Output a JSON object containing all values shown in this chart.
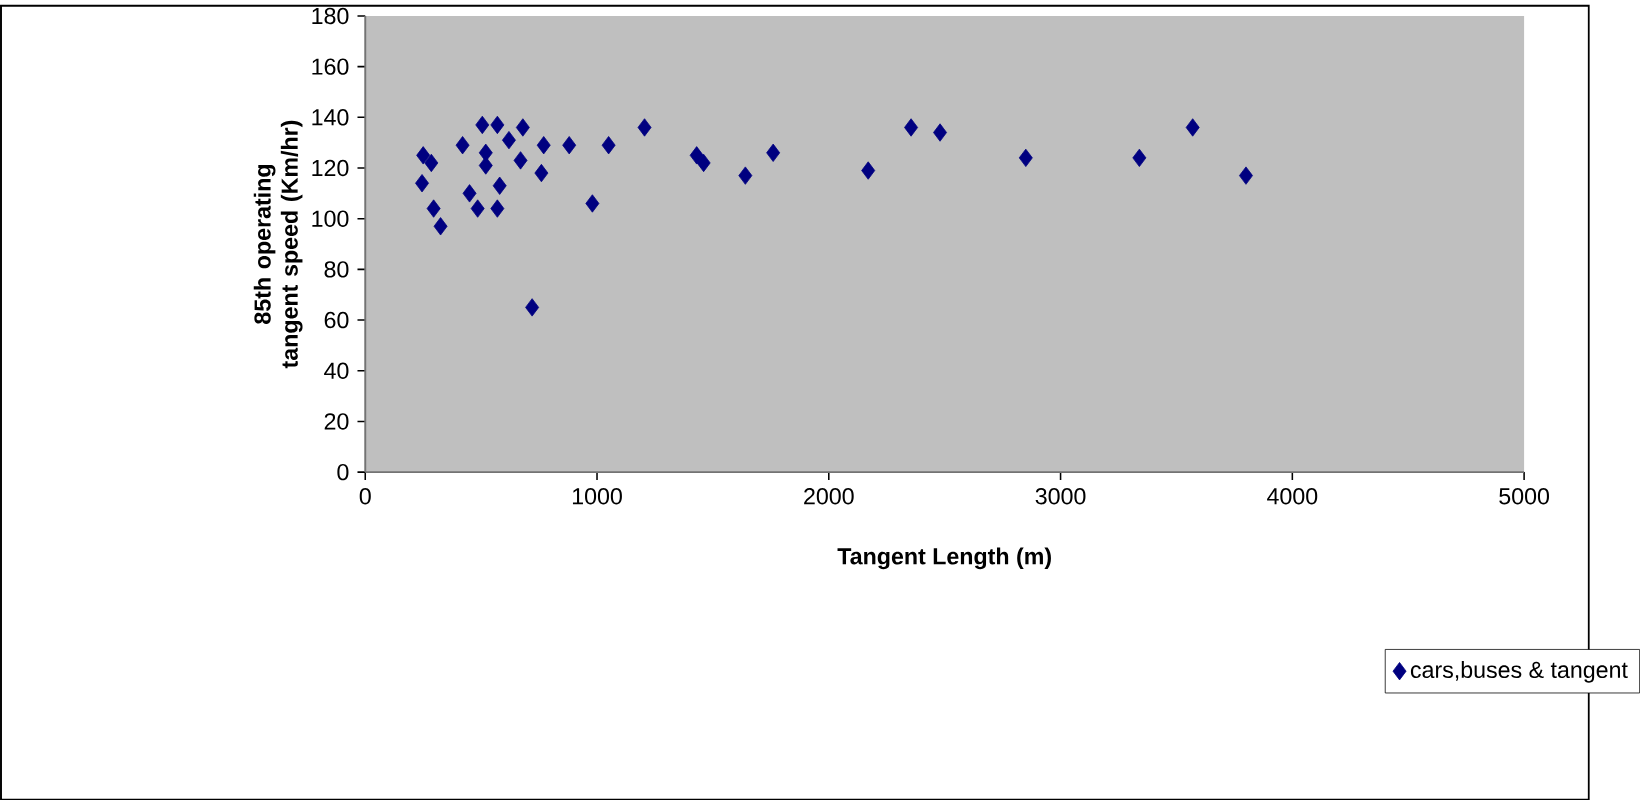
{
  "chart_data": {
    "type": "scatter",
    "xlabel": "Tangent Length (m)",
    "ylabel": "85th operating tangent speed (Km/hr)",
    "xlim": [
      0,
      5000
    ],
    "xticks": [
      0,
      1000,
      2000,
      3000,
      4000,
      5000
    ],
    "ylim": [
      0,
      180
    ],
    "yticks": [
      0,
      20,
      40,
      60,
      80,
      100,
      120,
      140,
      160,
      180
    ],
    "grid": false,
    "legend": "bottom right",
    "marker": "diamond",
    "series": [
      {
        "name": "cars,buses & tangent",
        "color": "#000080",
        "x": [
          250,
          285,
          245,
          295,
          325,
          420,
          505,
          570,
          620,
          680,
          520,
          520,
          670,
          770,
          760,
          880,
          1050,
          1205,
          1430,
          1460,
          450,
          485,
          570,
          580,
          980,
          720,
          1640,
          1760,
          2170,
          2355,
          2480,
          2850,
          3340,
          3570,
          3800
        ],
        "values": [
          125,
          122,
          114,
          104,
          97,
          129,
          137,
          137,
          131,
          136,
          126,
          121,
          123,
          129,
          118,
          129,
          129,
          136,
          125,
          122,
          110,
          104,
          104,
          113,
          106,
          65,
          117,
          126,
          119,
          136,
          134,
          124,
          124,
          136,
          117
        ]
      }
    ]
  }
}
